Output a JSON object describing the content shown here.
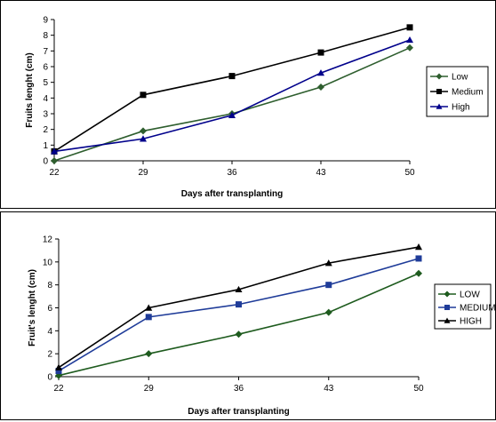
{
  "chart_data": [
    {
      "type": "line",
      "x": [
        22,
        29,
        36,
        43,
        50
      ],
      "categories": [
        "22",
        "29",
        "36",
        "43",
        "50"
      ],
      "xlabel": "Days after transplanting",
      "ylabel": "Fruits lenght (cm)",
      "ylim": [
        0,
        9
      ],
      "yticks": [
        0,
        1,
        2,
        3,
        4,
        5,
        6,
        7,
        8,
        9
      ],
      "grid": false,
      "legend_position": "right",
      "series": [
        {
          "name": "Low",
          "values": [
            0.0,
            1.9,
            3.0,
            4.7,
            7.2
          ],
          "color": "#2e5e2e",
          "marker": "diamond"
        },
        {
          "name": "Medium",
          "values": [
            0.6,
            4.2,
            5.4,
            6.9,
            8.5
          ],
          "color": "#000000",
          "marker": "square"
        },
        {
          "name": "High",
          "values": [
            0.6,
            1.4,
            2.9,
            5.6,
            7.7
          ],
          "color": "#00008b",
          "marker": "triangle"
        }
      ]
    },
    {
      "type": "line",
      "x": [
        22,
        29,
        36,
        43,
        50
      ],
      "categories": [
        "22",
        "29",
        "36",
        "43",
        "50"
      ],
      "xlabel": "Days after transplanting",
      "ylabel": "Fruit's lenght (cm)",
      "ylim": [
        0,
        12
      ],
      "yticks": [
        0,
        2,
        4,
        6,
        8,
        10,
        12
      ],
      "grid": false,
      "legend_position": "right",
      "series": [
        {
          "name": "LOW",
          "values": [
            0.1,
            2.0,
            3.7,
            5.6,
            9.0
          ],
          "color": "#1e5b1e",
          "marker": "diamond"
        },
        {
          "name": "MEDIUM",
          "values": [
            0.5,
            5.2,
            6.3,
            8.0,
            10.3
          ],
          "color": "#1f3c99",
          "marker": "square"
        },
        {
          "name": "HIGH",
          "values": [
            0.8,
            6.0,
            7.6,
            9.9,
            11.3
          ],
          "color": "#000000",
          "marker": "triangle"
        }
      ]
    }
  ]
}
